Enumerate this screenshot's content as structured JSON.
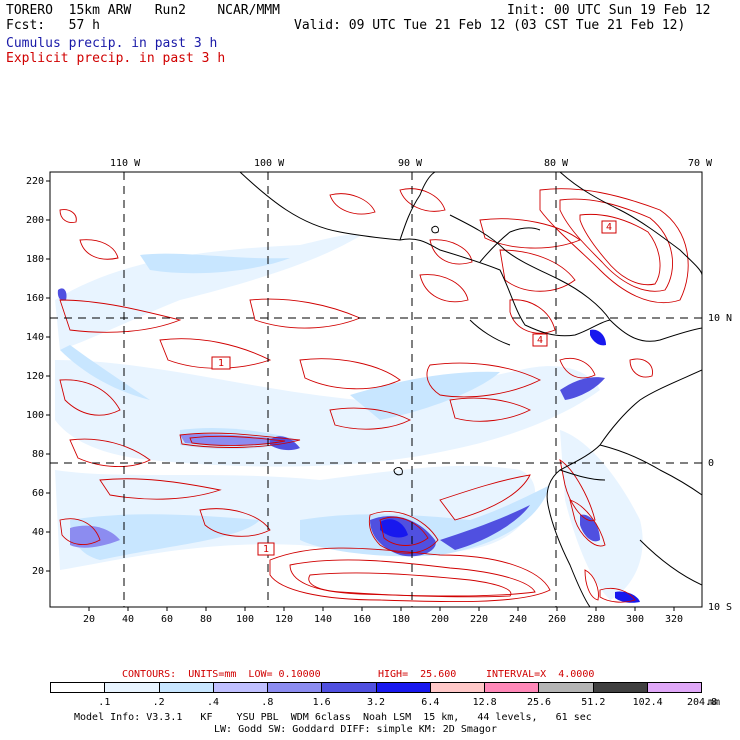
{
  "header": {
    "model": "TORERO  15km ARW   Run2    NCAR/MMM",
    "init": "Init: 00 UTC Sun 19 Feb 12",
    "fcst": "Fcst:   57 h",
    "valid": "Valid: 09 UTC Tue 21 Feb 12 (03 CST Tue 21 Feb 12)",
    "field1": "Cumulus precip. in past 3 h",
    "field2": "Explicit precip. in past 3 h"
  },
  "top_axis": [
    "110 W",
    "100 W",
    "90 W",
    "80 W",
    "70 W"
  ],
  "right_axis": [
    "10 N",
    "0",
    "10 S"
  ],
  "left_axis": [
    "220",
    "200",
    "180",
    "160",
    "140",
    "120",
    "100",
    "80",
    "60",
    "40",
    "20"
  ],
  "bottom_axis": [
    "20",
    "40",
    "60",
    "80",
    "100",
    "120",
    "140",
    "160",
    "180",
    "200",
    "220",
    "240",
    "260",
    "280",
    "300",
    "320"
  ],
  "contour_labels": [
    "4",
    "4",
    "1",
    "1"
  ],
  "contours_line": {
    "prefix": "CONTOURS:  UNITS=mm  LOW= 0.10000",
    "high": "HIGH=  25.600",
    "interval": "INTERVAL=X  4.0000"
  },
  "legend": {
    "labels": [
      ".1",
      ".2",
      ".4",
      ".8",
      "1.6",
      "3.2",
      "6.4",
      "12.8",
      "25.6",
      "51.2",
      "102.4",
      "204.8"
    ],
    "unit": "mm",
    "colors": [
      "#ffffff",
      "#e8f4ff",
      "#c8e6ff",
      "#c0c0ff",
      "#8c8cf0",
      "#5050e0",
      "#1818ee",
      "#ffc8c8",
      "#ff88b8",
      "#b4b4b4",
      "#404040",
      "#e0a8f8"
    ]
  },
  "footer": {
    "line1": "Model Info: V3.3.1   KF    YSU PBL  WDM 6class  Noah LSM  15 km,   44 levels,   61 sec",
    "line2": "LW: Godd SW: Goddard DIFF: simple KM: 2D Smagor"
  }
}
